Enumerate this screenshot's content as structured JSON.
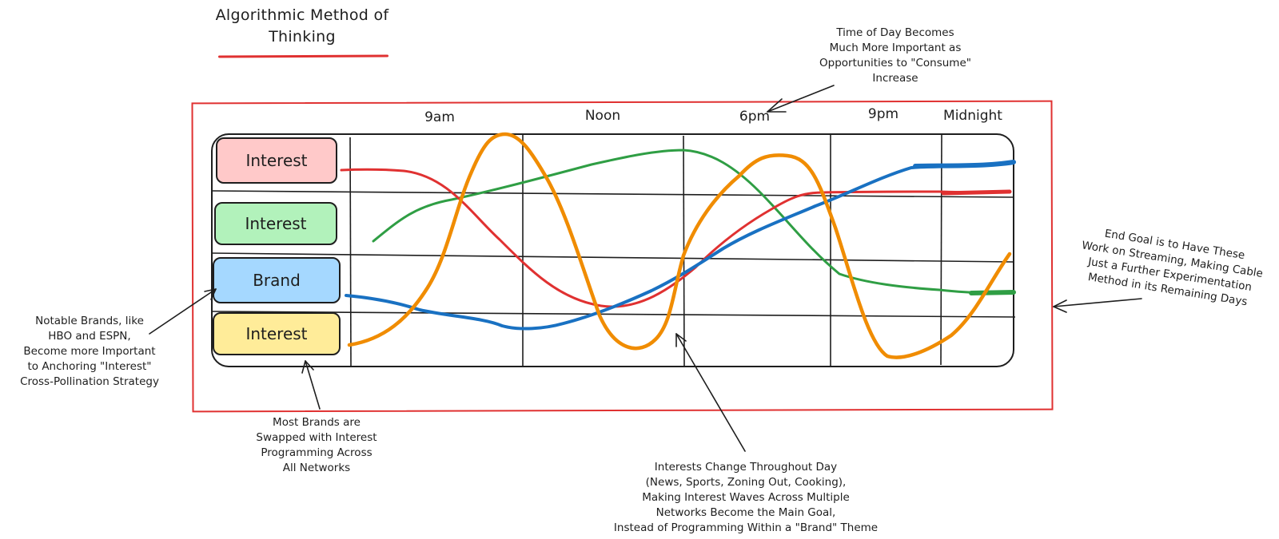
{
  "title": "Algorithmic Method of Thinking",
  "rows": [
    {
      "label": "Interest",
      "color": "#ffc9c9"
    },
    {
      "label": "Interest",
      "color": "#b2f2bb"
    },
    {
      "label": "Brand",
      "color": "#a5d8ff"
    },
    {
      "label": "Interest",
      "color": "#ffec99"
    }
  ],
  "times": [
    "9am",
    "Noon",
    "6pm",
    "9pm",
    "Midnight"
  ],
  "notes": {
    "time_of_day": "Time of Day Becomes\nMuch More Important as\nOpportunities to \"Consume\"\nIncrease",
    "end_goal": "End Goal is to Have These\nWork on Streaming, Making Cable\nJust a Further Experimentation\nMethod in its Remaining Days",
    "notable_brands": "Notable Brands, like\nHBO and ESPN,\nBecome more Important\nto Anchoring \"Interest\"\nCross-Pollination Strategy",
    "most_brands": "Most Brands are\nSwapped with Interest\nProgramming Across\nAll Networks",
    "interests_change": "Interests Change Throughout Day\n(News, Sports, Zoning Out, Cooking),\nMaking Interest Waves Across Multiple\nNetworks Become the Main Goal,\nInstead of Programming Within a \"Brand\" Theme"
  },
  "colors": {
    "frame": "#e03131",
    "red_line": "#e03131",
    "green_line": "#2f9e44",
    "blue_line": "#1971c2",
    "orange_line": "#f08c00"
  }
}
